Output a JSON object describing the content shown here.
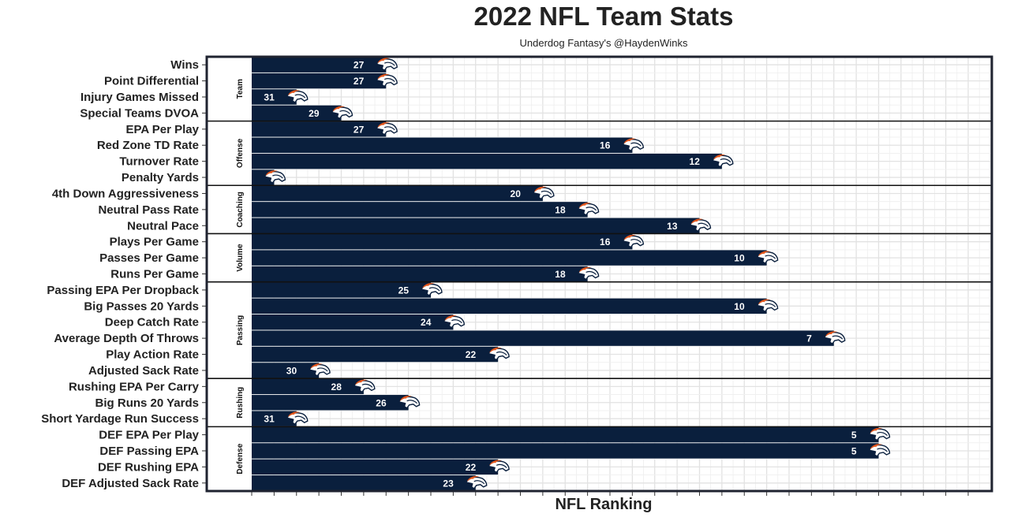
{
  "chart_data": {
    "type": "bar",
    "orientation": "horizontal",
    "title": "2022 NFL Team Stats",
    "subtitle": "Underdog Fantasy's @HaydenWinks",
    "xlabel": "NFL Ranking",
    "ylabel": "",
    "bar_color": "#0a1f3d",
    "logo": "denver-broncos-logo",
    "grid": true,
    "rank_count": 32,
    "groups": [
      {
        "name": "Team",
        "items": [
          {
            "label": "Wins",
            "rank": 27
          },
          {
            "label": "Point Differential",
            "rank": 27
          },
          {
            "label": "Injury Games Missed",
            "rank": 31
          },
          {
            "label": "Special Teams DVOA",
            "rank": 29
          }
        ]
      },
      {
        "name": "Offense",
        "items": [
          {
            "label": "EPA Per Play",
            "rank": 27
          },
          {
            "label": "Red Zone TD Rate",
            "rank": 16
          },
          {
            "label": "Turnover Rate",
            "rank": 12
          },
          {
            "label": "Penalty Yards",
            "rank": 32
          }
        ]
      },
      {
        "name": "Coaching",
        "items": [
          {
            "label": "4th Down Aggressiveness",
            "rank": 20
          },
          {
            "label": "Neutral Pass Rate",
            "rank": 18
          },
          {
            "label": "Neutral Pace",
            "rank": 13
          }
        ]
      },
      {
        "name": "Volume",
        "items": [
          {
            "label": "Plays Per Game",
            "rank": 16
          },
          {
            "label": "Passes Per Game",
            "rank": 10
          },
          {
            "label": "Runs Per Game",
            "rank": 18
          }
        ]
      },
      {
        "name": "Passing",
        "items": [
          {
            "label": "Passing EPA Per Dropback",
            "rank": 25
          },
          {
            "label": "Big Passes 20 Yards",
            "rank": 10
          },
          {
            "label": "Deep Catch Rate",
            "rank": 24
          },
          {
            "label": "Average Depth Of Throws",
            "rank": 7
          },
          {
            "label": "Play Action Rate",
            "rank": 22
          },
          {
            "label": "Adjusted Sack Rate",
            "rank": 30
          }
        ]
      },
      {
        "name": "Rushing",
        "items": [
          {
            "label": "Rushing EPA Per Carry",
            "rank": 28
          },
          {
            "label": "Big Runs 20 Yards",
            "rank": 26
          },
          {
            "label": "Short Yardage Run Success",
            "rank": 31
          }
        ]
      },
      {
        "name": "Defense",
        "items": [
          {
            "label": "DEF EPA Per Play",
            "rank": 5
          },
          {
            "label": "DEF Passing EPA",
            "rank": 5
          },
          {
            "label": "DEF Rushing EPA",
            "rank": 22
          },
          {
            "label": "DEF Adjusted Sack Rate",
            "rank": 23
          }
        ]
      }
    ]
  }
}
